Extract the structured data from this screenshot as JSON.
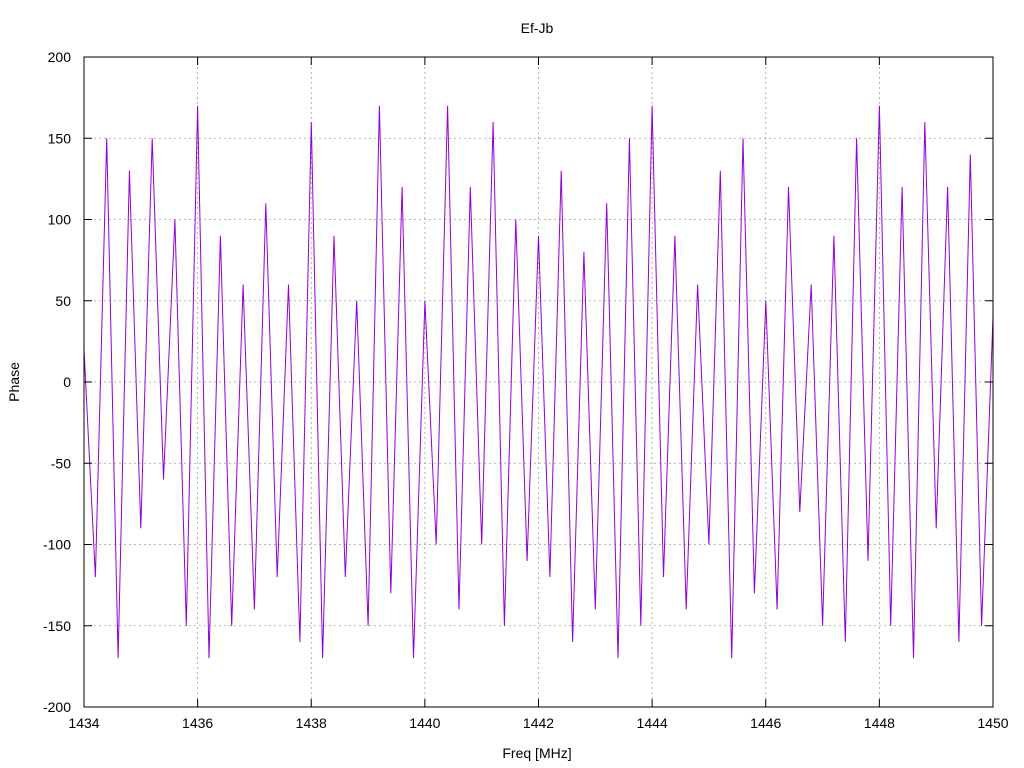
{
  "chart_data": {
    "type": "line",
    "title": "Ef-Jb",
    "xlabel": "Freq [MHz]",
    "ylabel": "Phase",
    "xlim": [
      1434,
      1450
    ],
    "ylim": [
      -200,
      200
    ],
    "xticks": [
      1434,
      1436,
      1438,
      1440,
      1442,
      1444,
      1446,
      1448,
      1450
    ],
    "yticks": [
      -200,
      -150,
      -100,
      -50,
      0,
      50,
      100,
      150,
      200
    ],
    "grid": true,
    "legend": "none",
    "series_color": "#9400d3",
    "series": [
      {
        "x": [
          1434.0,
          1434.2,
          1434.4,
          1434.6,
          1434.8,
          1435.0,
          1435.2,
          1435.4,
          1435.6,
          1435.8,
          1436.0,
          1436.2,
          1436.4,
          1436.6,
          1436.8,
          1437.0,
          1437.2,
          1437.4,
          1437.6,
          1437.8,
          1438.0,
          1438.2,
          1438.4,
          1438.6,
          1438.8,
          1439.0,
          1439.2,
          1439.4,
          1439.6,
          1439.8,
          1440.0,
          1440.2,
          1440.4,
          1440.6,
          1440.8,
          1441.0,
          1441.2,
          1441.4,
          1441.6,
          1441.8,
          1442.0,
          1442.2,
          1442.4,
          1442.6,
          1442.8,
          1443.0,
          1443.2,
          1443.4,
          1443.6,
          1443.8,
          1444.0,
          1444.2,
          1444.4,
          1444.6,
          1444.8,
          1445.0,
          1445.2,
          1445.4,
          1445.6,
          1445.8,
          1446.0,
          1446.2,
          1446.4,
          1446.6,
          1446.8,
          1447.0,
          1447.2,
          1447.4,
          1447.6,
          1447.8,
          1448.0,
          1448.2,
          1448.4,
          1448.6,
          1448.8,
          1449.0,
          1449.2,
          1449.4,
          1449.6,
          1449.8,
          1450.0
        ],
        "y": [
          20,
          -120,
          150,
          -170,
          130,
          -90,
          150,
          -60,
          100,
          -150,
          170,
          -170,
          90,
          -150,
          60,
          -140,
          110,
          -120,
          60,
          -160,
          160,
          -170,
          90,
          -120,
          50,
          -150,
          170,
          -130,
          120,
          -170,
          50,
          -100,
          170,
          -140,
          120,
          -100,
          160,
          -150,
          100,
          -110,
          90,
          -120,
          130,
          -160,
          80,
          -140,
          110,
          -170,
          150,
          -150,
          170,
          -120,
          90,
          -140,
          60,
          -100,
          130,
          -170,
          150,
          -130,
          50,
          -140,
          120,
          -80,
          60,
          -150,
          90,
          -160,
          150,
          -110,
          170,
          -150,
          120,
          -170,
          160,
          -90,
          120,
          -160,
          140,
          -150,
          40
        ]
      }
    ]
  }
}
